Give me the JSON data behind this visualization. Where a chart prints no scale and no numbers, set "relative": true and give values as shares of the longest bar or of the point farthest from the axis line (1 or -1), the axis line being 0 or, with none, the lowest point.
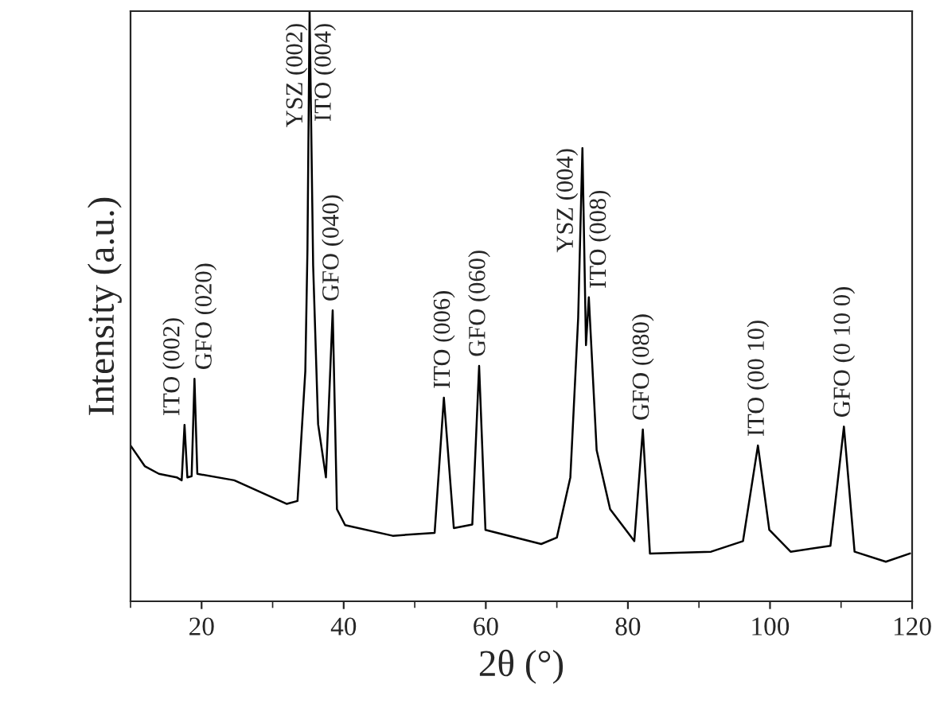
{
  "chart_data": {
    "type": "line",
    "relative": true,
    "xlabel": "2θ (°)",
    "ylabel": "Intensity (a.u.)",
    "xlim": [
      10,
      120
    ],
    "xticks": [
      20,
      40,
      60,
      80,
      100,
      120
    ],
    "grid": false,
    "legend": false,
    "marker": "none",
    "line_style": "solid",
    "series": [
      {
        "color": "#000000",
        "x": [
          10,
          12,
          14,
          16.5,
          17.2,
          17.6,
          18.0,
          18.6,
          19.0,
          19.4,
          24.6,
          32.0,
          33.5,
          34.6,
          34.9,
          35.2,
          35.7,
          36.4,
          37.5,
          38.45,
          39.05,
          40.2,
          46.9,
          52.8,
          54.1,
          55.5,
          58.1,
          59.06,
          59.95,
          67.8,
          70.0,
          71.9,
          73.0,
          73.6,
          74.1,
          74.5,
          75.6,
          77.5,
          80.9,
          82.1,
          83.1,
          91.7,
          96.2,
          98.3,
          99.9,
          102.9,
          108.5,
          110.4,
          111.9,
          116.3,
          119.7
        ],
        "values": [
          0.264,
          0.229,
          0.216,
          0.21,
          0.205,
          0.299,
          0.21,
          0.212,
          0.377,
          0.216,
          0.205,
          0.165,
          0.17,
          0.39,
          0.596,
          1.0,
          0.569,
          0.3,
          0.21,
          0.493,
          0.156,
          0.129,
          0.111,
          0.116,
          0.345,
          0.124,
          0.13,
          0.399,
          0.121,
          0.097,
          0.108,
          0.21,
          0.48,
          0.768,
          0.434,
          0.515,
          0.256,
          0.156,
          0.102,
          0.291,
          0.081,
          0.084,
          0.102,
          0.264,
          0.121,
          0.084,
          0.094,
          0.296,
          0.084,
          0.067,
          0.081
        ]
      }
    ],
    "annotations": [
      {
        "text": "ITO (002)",
        "x": 17.6,
        "y": 0.299
      },
      {
        "text": "GFO (020)",
        "x": 19.0,
        "y": 0.377
      },
      {
        "text": "YSZ (002)",
        "x": 35.2,
        "y": 1.0
      },
      {
        "text": "ITO (004)",
        "x": 35.5,
        "y": 1.0
      },
      {
        "text": "GFO (040)",
        "x": 38.45,
        "y": 0.493
      },
      {
        "text": "ITO (006)",
        "x": 54.1,
        "y": 0.345
      },
      {
        "text": "GFO (060)",
        "x": 59.06,
        "y": 0.399
      },
      {
        "text": "YSZ (004)",
        "x": 73.6,
        "y": 0.768
      },
      {
        "text": "ITO (008)",
        "x": 74.5,
        "y": 0.515
      },
      {
        "text": "GFO (080)",
        "x": 82.1,
        "y": 0.291
      },
      {
        "text": "ITO (00 10)",
        "x": 98.3,
        "y": 0.264
      },
      {
        "text": "GFO (0 10 0)",
        "x": 110.4,
        "y": 0.296
      }
    ]
  }
}
